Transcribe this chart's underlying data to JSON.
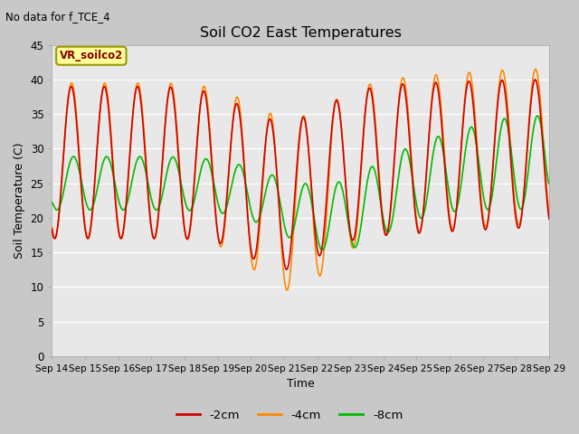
{
  "title": "Soil CO2 East Temperatures",
  "subtitle": "No data for f_TCE_4",
  "xlabel": "Time",
  "ylabel": "Soil Temperature (C)",
  "ylim": [
    0,
    45
  ],
  "yticks": [
    0,
    5,
    10,
    15,
    20,
    25,
    30,
    35,
    40,
    45
  ],
  "xtick_labels": [
    "Sep 14",
    "Sep 15",
    "Sep 16",
    "Sep 17",
    "Sep 18",
    "Sep 19",
    "Sep 20",
    "Sep 21",
    "Sep 22",
    "Sep 23",
    "Sep 24",
    "Sep 25",
    "Sep 26",
    "Sep 27",
    "Sep 28",
    "Sep 29"
  ],
  "colors": {
    "2cm": "#cc0000",
    "4cm": "#ff8800",
    "8cm": "#00bb00"
  },
  "legend_label": "VR_soilco2",
  "legend_box_color": "#ffff99",
  "legend_box_edge": "#999900",
  "background_plot": "#e8e8e8",
  "background_outer": "#c8c8c8",
  "series_labels": [
    "-2cm",
    "-4cm",
    "-8cm"
  ],
  "line_width": 1.2
}
